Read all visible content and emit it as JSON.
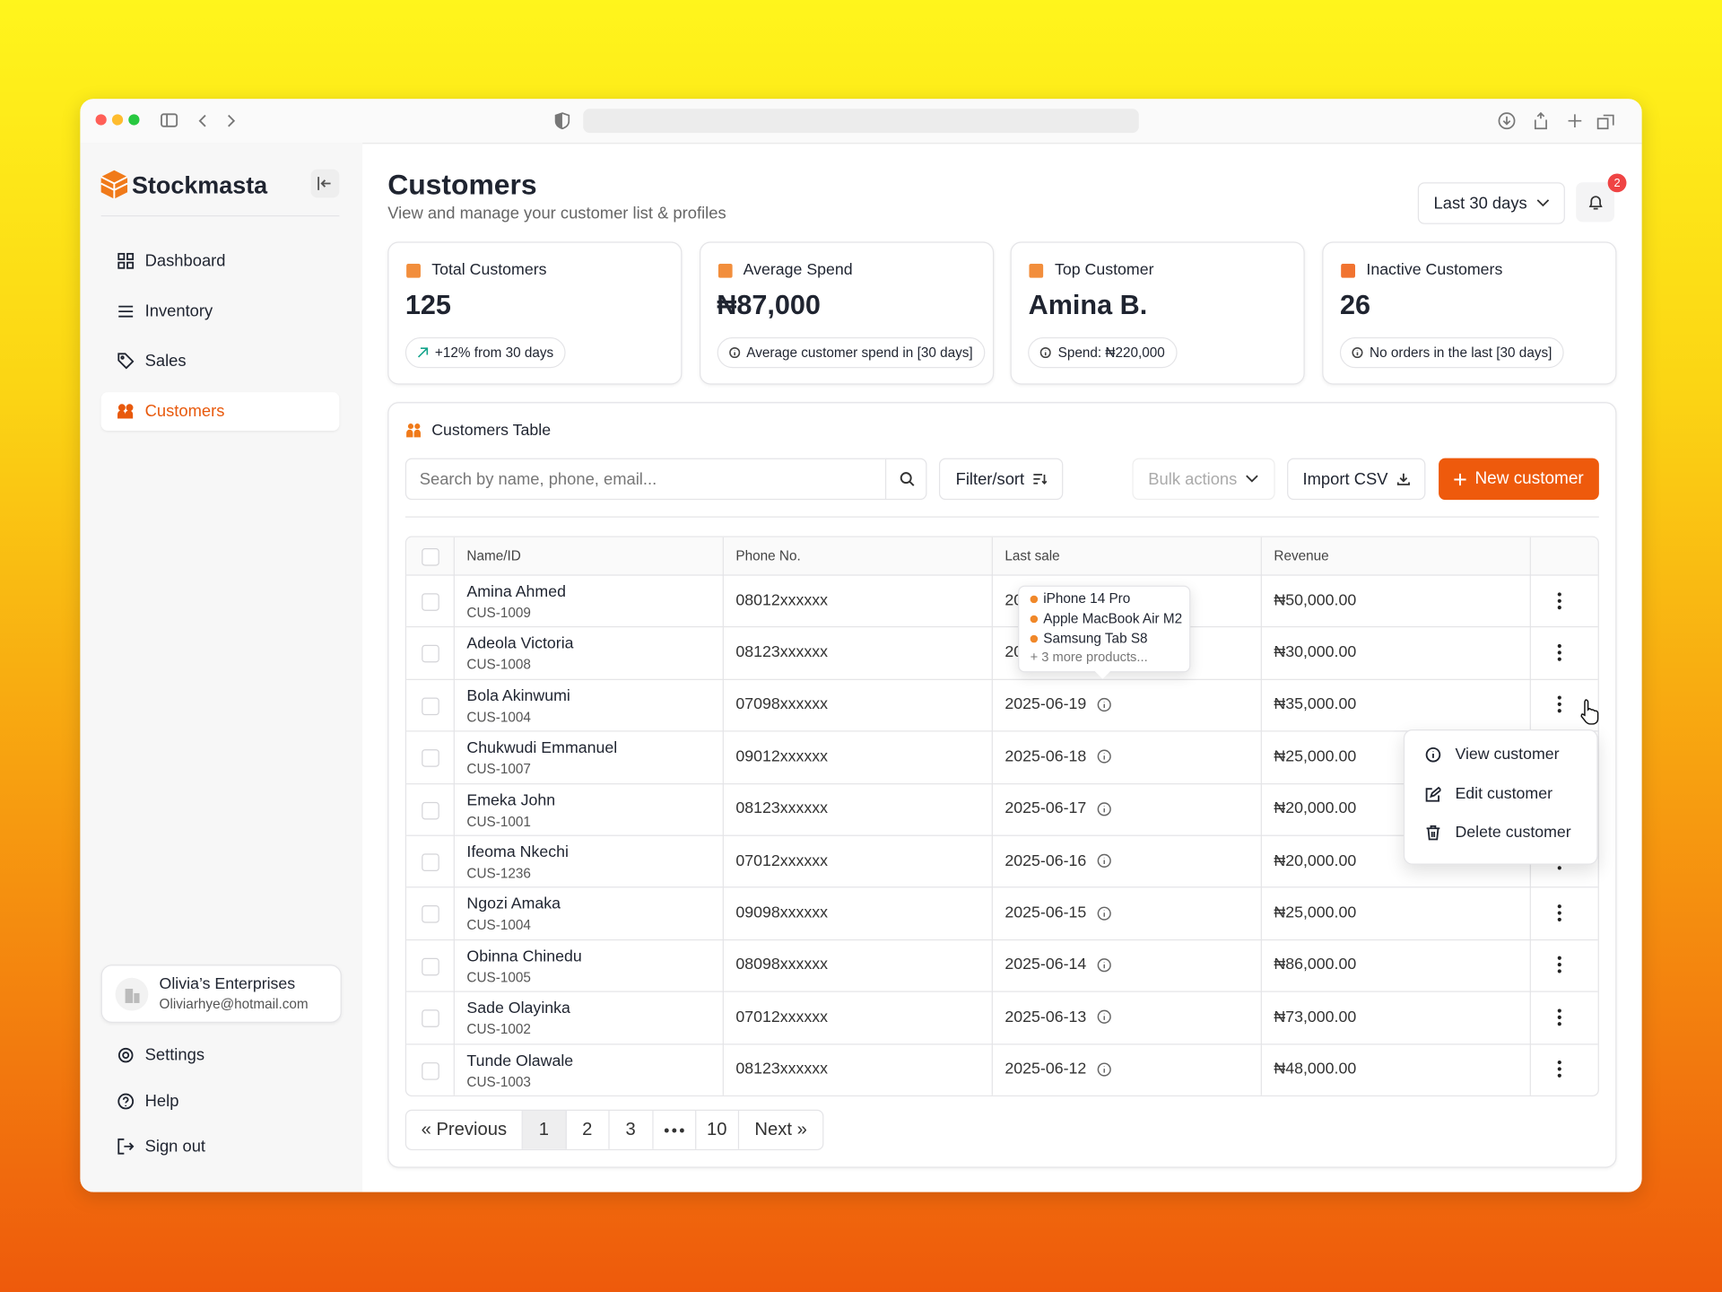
{
  "sidebar": {
    "brand": "Stockmasta",
    "nav": [
      "Dashboard",
      "Inventory",
      "Sales",
      "Customers"
    ],
    "active": 3,
    "account": {
      "name": "Olivia’s Enterprises",
      "email": "Oliviarhye@hotmail.com"
    },
    "footer": [
      "Settings",
      "Help",
      "Sign out"
    ]
  },
  "header": {
    "title": "Customers",
    "subtitle": "View and manage your customer list & profiles",
    "range": "Last 30 days",
    "notifications": "2"
  },
  "stats": [
    {
      "label": "Total Customers",
      "value": "125",
      "note": "+12% from 30 days"
    },
    {
      "label": "Average Spend",
      "value": "₦87,000",
      "note": "Average customer spend in [30 days]"
    },
    {
      "label": "Top Customer",
      "value": "Amina B.",
      "note": "Spend: ₦220,000"
    },
    {
      "label": "Inactive Customers",
      "value": "26",
      "note": "No orders in the last [30 days]"
    }
  ],
  "table": {
    "title": "Customers Table",
    "search": "Search by name, phone, email...",
    "filter": "Filter/sort",
    "bulk": "Bulk actions",
    "import": "Import CSV",
    "new": "New customer",
    "columns": [
      "Name/ID",
      "Phone No.",
      "Last sale",
      "Revenue"
    ],
    "rows": [
      {
        "name": "Amina Ahmed",
        "id": "CUS-1009",
        "phone": "08012xxxxxx",
        "last_sale": "20",
        "revenue": "₦50,000.00"
      },
      {
        "name": "Adeola Victoria",
        "id": "CUS-1008",
        "phone": "08123xxxxxx",
        "last_sale": "20",
        "revenue": "₦30,000.00"
      },
      {
        "name": "Bola Akinwumi",
        "id": "CUS-1004",
        "phone": "07098xxxxxx",
        "last_sale": "2025-06-19",
        "revenue": "₦35,000.00"
      },
      {
        "name": "Chukwudi Emmanuel",
        "id": "CUS-1007",
        "phone": "09012xxxxxx",
        "last_sale": "2025-06-18",
        "revenue": "₦25,000.00"
      },
      {
        "name": "Emeka John",
        "id": "CUS-1001",
        "phone": "08123xxxxxx",
        "last_sale": "2025-06-17",
        "revenue": "₦20,000.00"
      },
      {
        "name": "Ifeoma Nkechi",
        "id": "CUS-1236",
        "phone": "07012xxxxxx",
        "last_sale": "2025-06-16",
        "revenue": "₦20,000.00"
      },
      {
        "name": "Ngozi Amaka",
        "id": "CUS-1004",
        "phone": "09098xxxxxx",
        "last_sale": "2025-06-15",
        "revenue": "₦25,000.00"
      },
      {
        "name": "Obinna Chinedu",
        "id": "CUS-1005",
        "phone": "08098xxxxxx",
        "last_sale": "2025-06-14",
        "revenue": "₦86,000.00"
      },
      {
        "name": "Sade Olayinka",
        "id": "CUS-1002",
        "phone": "07012xxxxxx",
        "last_sale": "2025-06-13",
        "revenue": "₦73,000.00"
      },
      {
        "name": "Tunde Olawale",
        "id": "CUS-1003",
        "phone": "08123xxxxxx",
        "last_sale": "2025-06-12",
        "revenue": "₦48,000.00"
      }
    ],
    "tooltip": {
      "items": [
        "iPhone 14 Pro",
        "Apple MacBook Air M2",
        "Samsung Tab S8"
      ],
      "more": "+ 3 more products..."
    },
    "menu": [
      "View customer",
      "Edit customer",
      "Delete customer"
    ],
    "pagination": {
      "previous": "« Previous",
      "pages": [
        "1",
        "2",
        "3",
        "10"
      ],
      "current": 0,
      "next": "Next »"
    }
  }
}
